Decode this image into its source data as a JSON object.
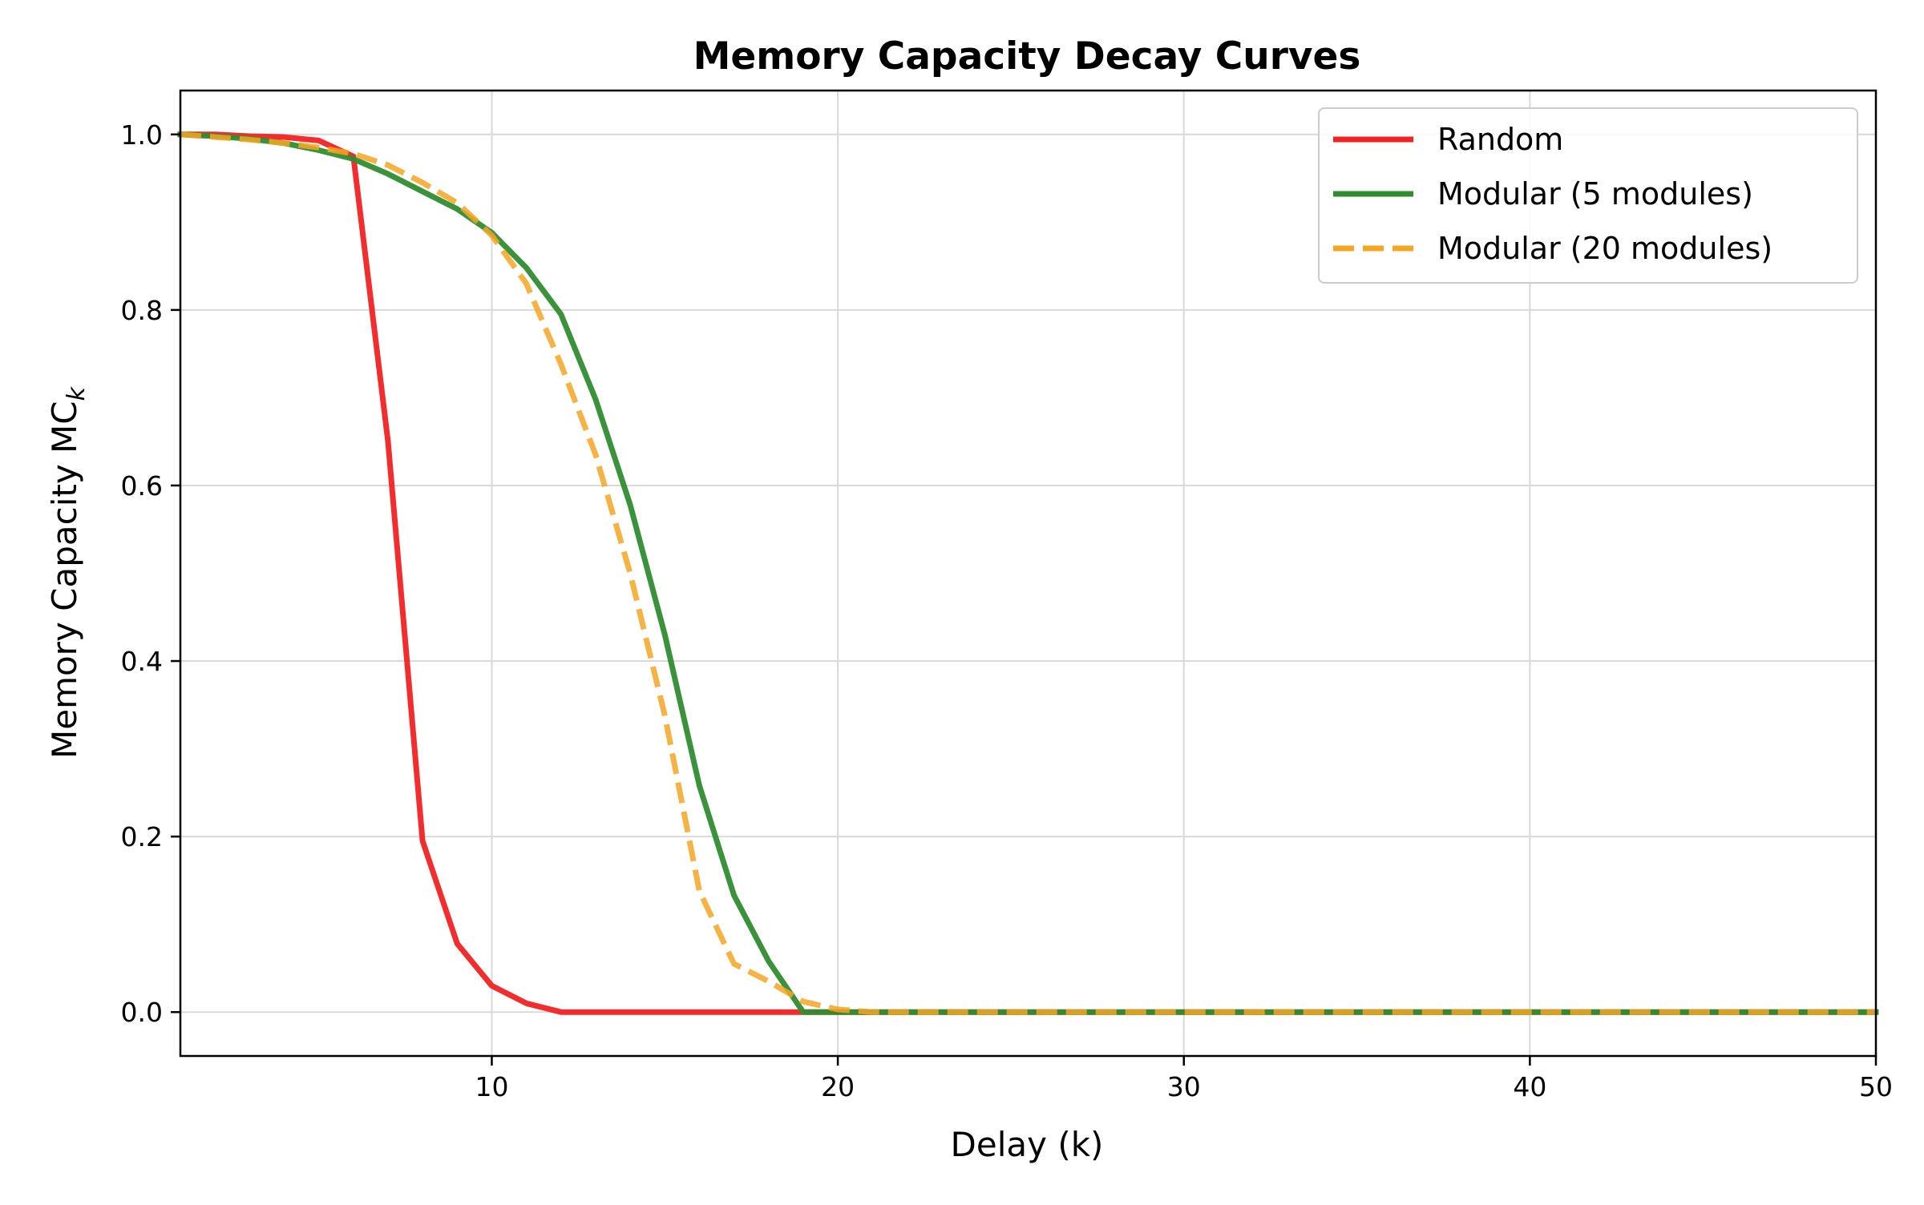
{
  "chart_data": {
    "type": "line",
    "title": "Memory Capacity Decay Curves",
    "xlabel": "Delay (k)",
    "ylabel": "Memory Capacity MC",
    "ylabel_subscript": "k",
    "xlim": [
      1,
      50
    ],
    "ylim": [
      -0.05,
      1.05
    ],
    "xticks": [
      10,
      20,
      30,
      40,
      50
    ],
    "yticks": [
      0.0,
      0.2,
      0.4,
      0.6,
      0.8,
      1.0
    ],
    "xtick_labels": [
      "10",
      "20",
      "30",
      "40",
      "50"
    ],
    "ytick_labels": [
      "0.0",
      "0.2",
      "0.4",
      "0.6",
      "0.8",
      "1.0"
    ],
    "grid": true,
    "legend_position": "top-right",
    "x": [
      1,
      2,
      3,
      4,
      5,
      6,
      7,
      8,
      9,
      10,
      11,
      12,
      13,
      14,
      15,
      16,
      17,
      18,
      19,
      20,
      21,
      22,
      23,
      24,
      25,
      26,
      27,
      28,
      29,
      30,
      31,
      32,
      33,
      34,
      35,
      36,
      37,
      38,
      39,
      40,
      41,
      42,
      43,
      44,
      45,
      46,
      47,
      48,
      49,
      50
    ],
    "series": [
      {
        "name": "Random",
        "color": "#f22222",
        "dash": "solid",
        "values": [
          1.0,
          1.0,
          0.998,
          0.997,
          0.993,
          0.975,
          0.65,
          0.195,
          0.078,
          0.03,
          0.01,
          0.0,
          0,
          0,
          0,
          0,
          0,
          0,
          0,
          0,
          0,
          0,
          0,
          0,
          0,
          0,
          0,
          0,
          0,
          0,
          0,
          0,
          0,
          0,
          0,
          0,
          0,
          0,
          0,
          0,
          0,
          0,
          0,
          0,
          0,
          0,
          0,
          0,
          0,
          0
        ]
      },
      {
        "name": "Modular (5 modules)",
        "color": "#2f8c2f",
        "dash": "solid",
        "values": [
          1.0,
          0.998,
          0.995,
          0.99,
          0.982,
          0.972,
          0.955,
          0.935,
          0.915,
          0.888,
          0.848,
          0.795,
          0.698,
          0.578,
          0.43,
          0.258,
          0.133,
          0.058,
          0.0,
          0.0,
          0,
          0,
          0,
          0,
          0,
          0,
          0,
          0,
          0,
          0,
          0,
          0,
          0,
          0,
          0,
          0,
          0,
          0,
          0,
          0,
          0,
          0,
          0,
          0,
          0,
          0,
          0,
          0,
          0,
          0
        ]
      },
      {
        "name": "Modular (20 modules)",
        "color": "#f5a623",
        "dash": "dashed",
        "values": [
          1.0,
          0.997,
          0.994,
          0.99,
          0.985,
          0.978,
          0.965,
          0.945,
          0.922,
          0.885,
          0.83,
          0.738,
          0.635,
          0.5,
          0.338,
          0.138,
          0.055,
          0.035,
          0.012,
          0.003,
          0,
          0,
          0,
          0,
          0,
          0,
          0,
          0,
          0,
          0,
          0,
          0,
          0,
          0,
          0,
          0,
          0,
          0,
          0,
          0,
          0,
          0,
          0,
          0,
          0,
          0,
          0,
          0,
          0,
          0
        ]
      }
    ]
  }
}
